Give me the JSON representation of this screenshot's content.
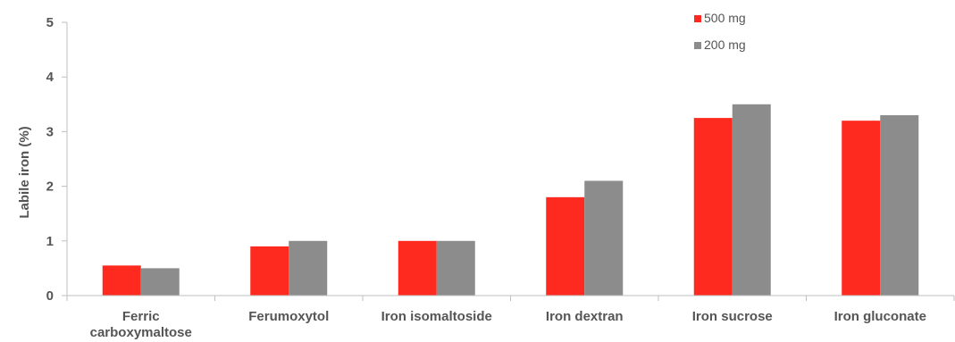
{
  "chart_data": {
    "type": "bar",
    "title": "",
    "xlabel": "",
    "ylabel": "Labile iron (%)",
    "ylim": [
      0,
      5
    ],
    "yticks": [
      "0",
      "1",
      "2",
      "3",
      "4",
      "5"
    ],
    "grid": false,
    "legend_position": "top-right",
    "categories": [
      [
        "Ferric",
        "carboxymaltose"
      ],
      [
        "Ferumoxytol"
      ],
      [
        "Iron isomaltoside"
      ],
      [
        "Iron dextran"
      ],
      [
        "Iron sucrose"
      ],
      [
        "Iron gluconate"
      ]
    ],
    "series": [
      {
        "name": "500 mg",
        "color": "#ff2a1f",
        "values": [
          0.55,
          0.9,
          1.0,
          1.8,
          3.25,
          3.2
        ]
      },
      {
        "name": "200 mg",
        "color": "#8c8c8c",
        "values": [
          0.5,
          1.0,
          1.0,
          2.1,
          3.5,
          3.3
        ]
      }
    ]
  }
}
